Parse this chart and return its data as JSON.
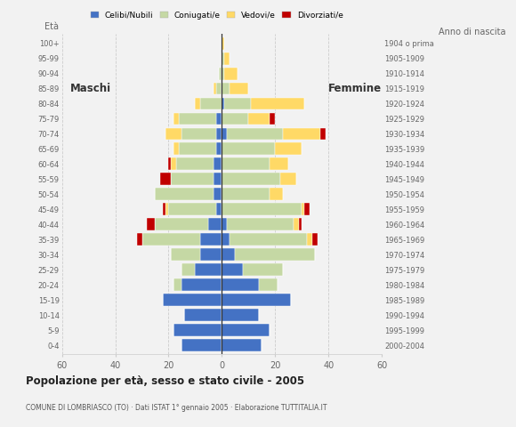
{
  "age_groups": [
    "0-4",
    "5-9",
    "10-14",
    "15-19",
    "20-24",
    "25-29",
    "30-34",
    "35-39",
    "40-44",
    "45-49",
    "50-54",
    "55-59",
    "60-64",
    "65-69",
    "70-74",
    "75-79",
    "80-84",
    "85-89",
    "90-94",
    "95-99",
    "100+"
  ],
  "birth_years": [
    "2000-2004",
    "1995-1999",
    "1990-1994",
    "1985-1989",
    "1980-1984",
    "1975-1979",
    "1970-1974",
    "1965-1969",
    "1960-1964",
    "1955-1959",
    "1950-1954",
    "1945-1949",
    "1940-1944",
    "1935-1939",
    "1930-1934",
    "1925-1929",
    "1920-1924",
    "1915-1919",
    "1910-1914",
    "1905-1909",
    "1904 o prima"
  ],
  "colors": {
    "celibe": "#4472c4",
    "coniugato": "#c5d8a4",
    "vedovo": "#ffd966",
    "divorziato": "#c00000"
  },
  "males": {
    "celibe": [
      15,
      18,
      14,
      22,
      15,
      10,
      8,
      8,
      5,
      2,
      3,
      3,
      3,
      2,
      2,
      2,
      0,
      0,
      0,
      0,
      0
    ],
    "coniugato": [
      0,
      0,
      0,
      0,
      3,
      5,
      11,
      22,
      20,
      18,
      22,
      16,
      14,
      14,
      13,
      14,
      8,
      2,
      1,
      0,
      0
    ],
    "vedovo": [
      0,
      0,
      0,
      0,
      0,
      0,
      0,
      0,
      0,
      1,
      0,
      0,
      2,
      2,
      6,
      2,
      2,
      1,
      0,
      0,
      0
    ],
    "divorziato": [
      0,
      0,
      0,
      0,
      0,
      0,
      0,
      2,
      3,
      1,
      0,
      4,
      1,
      0,
      0,
      0,
      0,
      0,
      0,
      0,
      0
    ]
  },
  "females": {
    "celibe": [
      15,
      18,
      14,
      26,
      14,
      8,
      5,
      3,
      2,
      0,
      0,
      0,
      0,
      0,
      2,
      0,
      1,
      0,
      0,
      0,
      0
    ],
    "coniugato": [
      0,
      0,
      0,
      0,
      7,
      15,
      30,
      29,
      25,
      30,
      18,
      22,
      18,
      20,
      21,
      10,
      10,
      3,
      1,
      1,
      0
    ],
    "vedovo": [
      0,
      0,
      0,
      0,
      0,
      0,
      0,
      2,
      2,
      1,
      5,
      6,
      7,
      10,
      14,
      8,
      20,
      7,
      5,
      2,
      1
    ],
    "divorziato": [
      0,
      0,
      0,
      0,
      0,
      0,
      0,
      2,
      1,
      2,
      0,
      0,
      0,
      0,
      2,
      2,
      0,
      0,
      0,
      0,
      0
    ]
  },
  "xlim": 60,
  "title": "Popolazione per età, sesso e stato civile - 2005",
  "subtitle": "COMUNE DI LOMBRIASCO (TO) · Dati ISTAT 1° gennaio 2005 · Elaborazione TUTTITALIA.IT",
  "xlabel_left": "Maschi",
  "xlabel_right": "Femmine",
  "ylabel_left": "Età",
  "ylabel_right": "Anno di nascita",
  "legend_labels": [
    "Celibi/Nubili",
    "Coniugati/e",
    "Vedovi/e",
    "Divorziati/e"
  ],
  "bg_color": "#f2f2f2",
  "bar_height": 0.82
}
